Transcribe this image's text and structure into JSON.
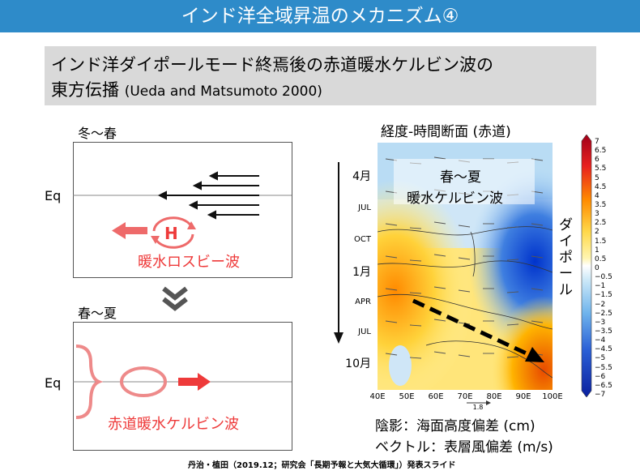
{
  "header": {
    "title": "インド洋全域昇温のメカニズム④"
  },
  "subtitle": {
    "line1": "インド洋ダイポールモード終焉後の赤道暖水ケルビン波の",
    "line2_main": "東方伝播",
    "line2_cite": "(Ueda and Matsumoto 2000)"
  },
  "left": {
    "top_season": "冬～春",
    "eq_label": "Eq",
    "h_label": "H",
    "rossby_label": "暖水ロスビー波",
    "bottom_season": "春～夏",
    "eq_label2": "Eq",
    "kelvin_label": "赤道暖水ケルビン波"
  },
  "chart": {
    "title": "経度-時間断面 (赤道)",
    "overlay_line1": "春～夏",
    "overlay_line2": "暖水ケルビン波",
    "dipole_label": "ダイポール",
    "y_ticks": [
      "4月",
      "JUL",
      "OCT",
      "1月",
      "APR",
      "JUL",
      "10月"
    ],
    "x_ticks": [
      "40E",
      "50E",
      "60E",
      "70E",
      "80E",
      "90E",
      "100E"
    ],
    "vector_scale": "1.8",
    "colorbar_ticks": [
      "7",
      "6.5",
      "6",
      "5.5",
      "5",
      "4.5",
      "4",
      "3.5",
      "3",
      "2.5",
      "2",
      "1.5",
      "1",
      "0.5",
      "0",
      "−0.5",
      "−1",
      "−1.5",
      "−2",
      "−2.5",
      "−3",
      "−3.5",
      "−4",
      "−4.5",
      "−5",
      "−5.5",
      "−6",
      "−6.5",
      "−7"
    ]
  },
  "legend": {
    "shading": "陰影：海面高度偏差 (cm)",
    "vector": "ベクトル：表層風偏差 (m/s)"
  },
  "footer": "丹治・植田（2019.12；研究会「長期予報と大気大循環」）発表スライド",
  "colors": {
    "banner": "#2e8bc9",
    "accent_red": "#ee3a3a",
    "subtitle_bg": "#d9d9d9"
  }
}
